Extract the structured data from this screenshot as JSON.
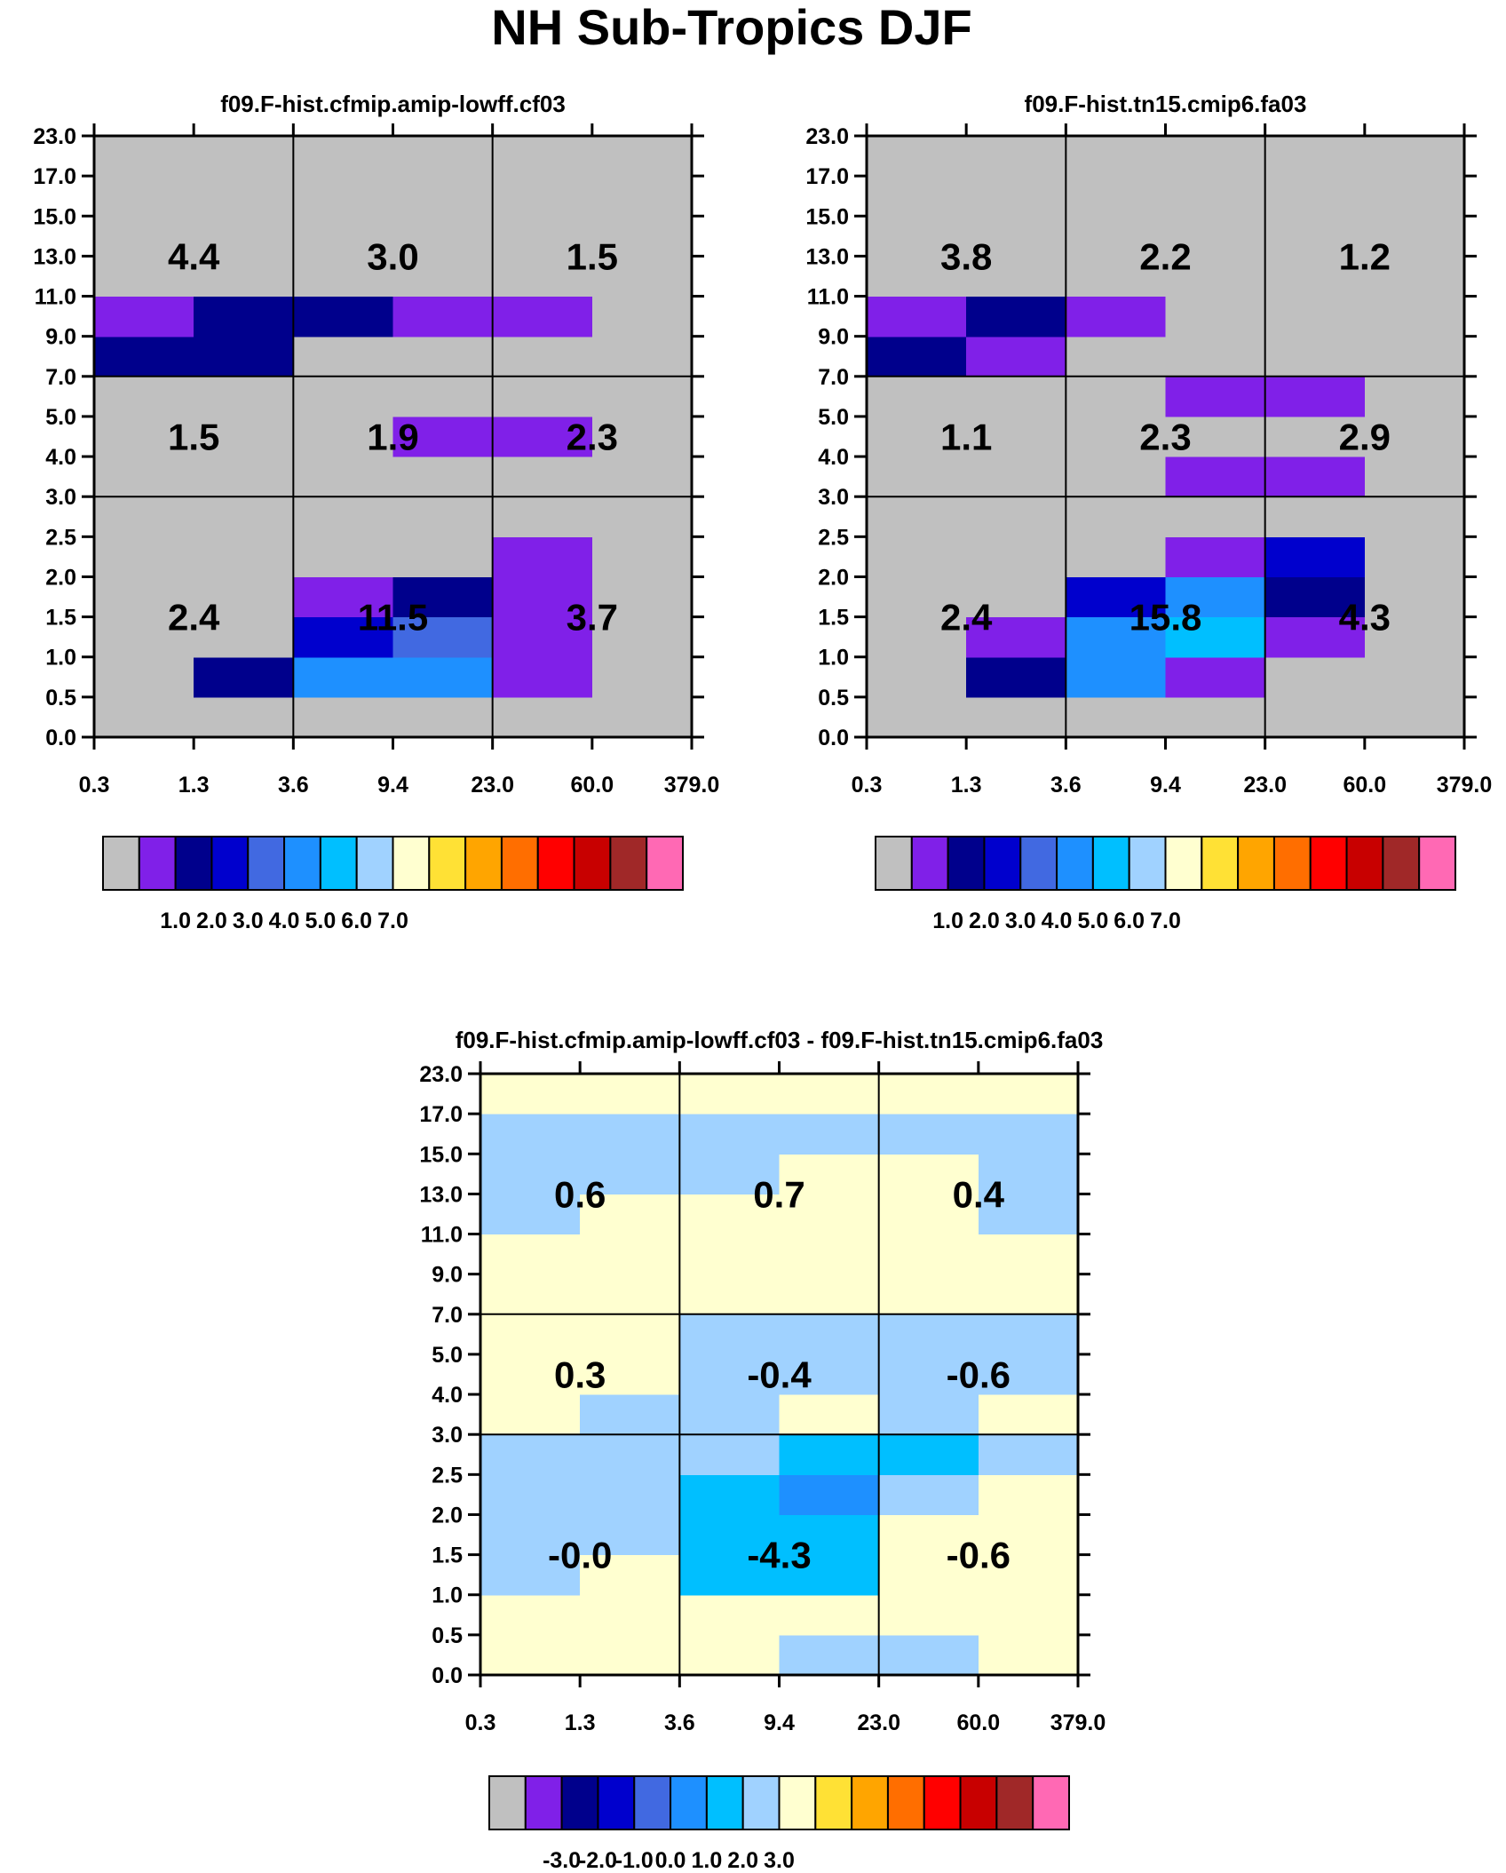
{
  "title": "NH Sub-Tropics DJF",
  "palette": [
    "#c0c0c0",
    "#8020e8",
    "#00008c",
    "#0000cd",
    "#4169e1",
    "#1e90ff",
    "#00bfff",
    "#a0d2ff",
    "#ffffd0",
    "#ffe135",
    "#ffa500",
    "#ff6e00",
    "#ff0000",
    "#c80000",
    "#a02828",
    "#ff69b4"
  ],
  "chart_data": [
    {
      "type": "heatmap",
      "title": "f09.F-hist.cfmip.amip-lowff.cf03",
      "x_tick_labels": [
        "0.3",
        "1.3",
        "3.6",
        "9.4",
        "23.0",
        "60.0",
        "379.0"
      ],
      "y_tick_labels": [
        "0.0",
        "0.5",
        "1.0",
        "1.5",
        "2.0",
        "2.5",
        "3.0",
        "4.0",
        "5.0",
        "7.0",
        "9.0",
        "11.0",
        "13.0",
        "15.0",
        "17.0",
        "23.0"
      ],
      "grid_rows": [
        [
          0,
          0,
          0,
          0,
          0,
          0
        ],
        [
          0,
          2,
          5,
          5,
          1,
          0
        ],
        [
          0,
          0,
          3,
          4,
          1,
          0
        ],
        [
          0,
          0,
          1,
          2,
          1,
          0
        ],
        [
          0,
          0,
          0,
          0,
          1,
          0
        ],
        [
          0,
          0,
          0,
          0,
          0,
          0
        ],
        [
          0,
          0,
          0,
          0,
          0,
          0
        ],
        [
          0,
          0,
          0,
          1,
          1,
          0
        ],
        [
          0,
          0,
          0,
          0,
          0,
          0
        ],
        [
          2,
          2,
          0,
          0,
          0,
          0
        ],
        [
          1,
          2,
          2,
          1,
          1,
          0
        ],
        [
          0,
          0,
          0,
          0,
          0,
          0
        ],
        [
          0,
          0,
          0,
          0,
          0,
          0
        ],
        [
          0,
          0,
          0,
          0,
          0,
          0
        ],
        [
          0,
          0,
          0,
          0,
          0,
          0
        ]
      ],
      "group_values": [
        [
          "2.4",
          "11.5",
          "3.7"
        ],
        [
          "1.5",
          "1.9",
          "2.3"
        ],
        [
          "4.4",
          "3.0",
          "1.5"
        ]
      ],
      "colorbar": {
        "tick_labels": [
          "1.0",
          "2.0",
          "3.0",
          "4.0",
          "5.0",
          "6.0",
          "7.0"
        ]
      }
    },
    {
      "type": "heatmap",
      "title": "f09.F-hist.tn15.cmip6.fa03",
      "x_tick_labels": [
        "0.3",
        "1.3",
        "3.6",
        "9.4",
        "23.0",
        "60.0",
        "379.0"
      ],
      "y_tick_labels": [
        "0.0",
        "0.5",
        "1.0",
        "1.5",
        "2.0",
        "2.5",
        "3.0",
        "4.0",
        "5.0",
        "7.0",
        "9.0",
        "11.0",
        "13.0",
        "15.0",
        "17.0",
        "23.0"
      ],
      "grid_rows": [
        [
          0,
          0,
          0,
          0,
          0,
          0
        ],
        [
          0,
          2,
          5,
          1,
          0,
          0
        ],
        [
          0,
          1,
          5,
          6,
          1,
          0
        ],
        [
          0,
          0,
          3,
          5,
          2,
          0
        ],
        [
          0,
          0,
          0,
          1,
          3,
          0
        ],
        [
          0,
          0,
          0,
          0,
          0,
          0
        ],
        [
          0,
          0,
          0,
          1,
          1,
          0
        ],
        [
          0,
          0,
          0,
          0,
          0,
          0
        ],
        [
          0,
          0,
          0,
          1,
          1,
          0
        ],
        [
          2,
          1,
          0,
          0,
          0,
          0
        ],
        [
          1,
          2,
          1,
          0,
          0,
          0
        ],
        [
          0,
          0,
          0,
          0,
          0,
          0
        ],
        [
          0,
          0,
          0,
          0,
          0,
          0
        ],
        [
          0,
          0,
          0,
          0,
          0,
          0
        ],
        [
          0,
          0,
          0,
          0,
          0,
          0
        ]
      ],
      "group_values": [
        [
          "2.4",
          "15.8",
          "4.3"
        ],
        [
          "1.1",
          "2.3",
          "2.9"
        ],
        [
          "3.8",
          "2.2",
          "1.2"
        ]
      ],
      "colorbar": {
        "tick_labels": [
          "1.0",
          "2.0",
          "3.0",
          "4.0",
          "5.0",
          "6.0",
          "7.0"
        ]
      }
    },
    {
      "type": "heatmap",
      "title": "f09.F-hist.cfmip.amip-lowff.cf03 - f09.F-hist.tn15.cmip6.fa03",
      "x_tick_labels": [
        "0.3",
        "1.3",
        "3.6",
        "9.4",
        "23.0",
        "60.0",
        "379.0"
      ],
      "y_tick_labels": [
        "0.0",
        "0.5",
        "1.0",
        "1.5",
        "2.0",
        "2.5",
        "3.0",
        "4.0",
        "5.0",
        "7.0",
        "9.0",
        "11.0",
        "13.0",
        "15.0",
        "17.0",
        "23.0"
      ],
      "grid_rows": [
        [
          8,
          8,
          8,
          7,
          7,
          8
        ],
        [
          8,
          8,
          8,
          8,
          8,
          8
        ],
        [
          7,
          8,
          6,
          6,
          8,
          8
        ],
        [
          7,
          7,
          6,
          6,
          8,
          8
        ],
        [
          7,
          7,
          6,
          5,
          7,
          8
        ],
        [
          7,
          7,
          7,
          6,
          6,
          7
        ],
        [
          8,
          7,
          7,
          8,
          7,
          8
        ],
        [
          8,
          8,
          7,
          7,
          7,
          7
        ],
        [
          8,
          8,
          7,
          7,
          7,
          7
        ],
        [
          8,
          8,
          8,
          8,
          8,
          8
        ],
        [
          8,
          8,
          8,
          8,
          8,
          8
        ],
        [
          7,
          8,
          8,
          8,
          8,
          7
        ],
        [
          7,
          7,
          7,
          8,
          8,
          7
        ],
        [
          7,
          7,
          7,
          7,
          7,
          7
        ],
        [
          8,
          8,
          8,
          8,
          8,
          8
        ]
      ],
      "group_values": [
        [
          "-0.0",
          "-4.3",
          "-0.6"
        ],
        [
          "0.3",
          "-0.4",
          "-0.6"
        ],
        [
          "0.6",
          "0.7",
          "0.4"
        ]
      ],
      "colorbar": {
        "tick_labels": [
          "-3.0",
          "-2.0",
          "-1.0",
          "0.0",
          "1.0",
          "2.0",
          "3.0"
        ]
      }
    }
  ]
}
